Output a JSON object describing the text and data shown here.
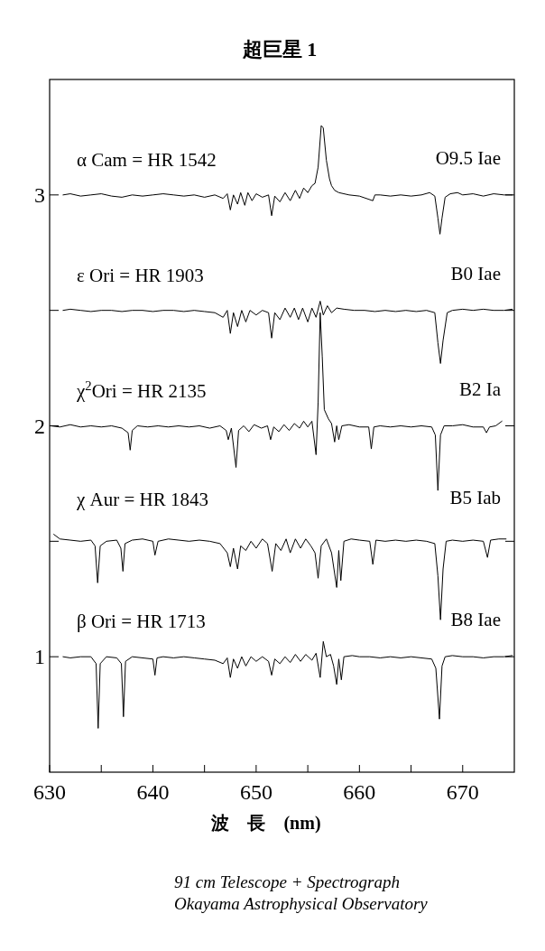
{
  "chart_data": {
    "type": "line",
    "title": "超巨星 1",
    "xlabel": "波　長　(nm)",
    "xlim": [
      630,
      675
    ],
    "ylim": [
      0.5,
      3.5
    ],
    "xticks": [
      630,
      {
        "value": 635,
        "label": null
      },
      640,
      {
        "value": 645,
        "label": null
      },
      650,
      {
        "value": 655,
        "label": null
      },
      660,
      {
        "value": 665,
        "label": null
      },
      670
    ],
    "yticks": [
      1,
      {
        "value": 1.5,
        "label": null
      },
      2,
      {
        "value": 2.5,
        "label": null
      },
      3
    ],
    "grid": false,
    "marker": "none",
    "line_style": "solid",
    "annotations": [
      "O9.5 Iae",
      "B0 Iae",
      "B2 Ia",
      "B5 Iab",
      "B8 Iae",
      "91 cm Telescope + Spectrograph",
      "Okayama Astrophysical Observatory"
    ],
    "series": [
      {
        "name": "α  Cam = HR 1542",
        "color": "#000000",
        "x": [
          631.3,
          632,
          633,
          634,
          635,
          636,
          637,
          638,
          639,
          640,
          641,
          642,
          643,
          644,
          645,
          646,
          646.8,
          647.2,
          647.5,
          647.8,
          648.2,
          648.5,
          648.9,
          649.2,
          649.6,
          650,
          650.6,
          651.2,
          651.5,
          651.8,
          652.3,
          652.8,
          653.3,
          653.8,
          654.2,
          654.6,
          655,
          655.4,
          655.7,
          656,
          656.3,
          656.5,
          656.8,
          657.1,
          657.3,
          657.6,
          658,
          659,
          660,
          661.3,
          661.5,
          662,
          663,
          664,
          665,
          666,
          666.8,
          667.3,
          667.6,
          667.8,
          668,
          668.3,
          668.8,
          669.5,
          670,
          671,
          672,
          673,
          674,
          674.8
        ],
        "values": [
          3.0,
          3.005,
          2.995,
          3.0,
          3.005,
          2.995,
          2.99,
          3.0,
          2.995,
          3.0,
          3.005,
          3.0,
          2.995,
          3.0,
          2.99,
          3.0,
          2.985,
          3.005,
          2.935,
          3.0,
          2.96,
          3.01,
          2.955,
          3.01,
          2.975,
          3.005,
          2.99,
          3.0,
          2.91,
          2.995,
          2.97,
          3.01,
          2.975,
          3.02,
          2.985,
          3.03,
          3.01,
          3.04,
          3.05,
          3.12,
          3.3,
          3.29,
          3.15,
          3.07,
          3.04,
          3.02,
          3.01,
          3.0,
          2.995,
          2.975,
          3.0,
          3.0,
          2.995,
          3.0,
          2.995,
          3.0,
          3.01,
          2.995,
          2.9,
          2.83,
          2.9,
          2.99,
          3.005,
          3.01,
          3.0,
          3.005,
          2.995,
          3.005,
          3.0,
          3.0
        ]
      },
      {
        "name": "ε  Ori = HR 1903",
        "color": "#000000",
        "x": [
          631.3,
          632,
          633,
          634,
          635,
          636,
          637,
          638,
          639,
          640,
          641,
          642,
          643,
          644,
          645,
          646,
          646.8,
          647.2,
          647.5,
          647.8,
          648.2,
          648.6,
          649,
          649.4,
          650,
          650.6,
          651.2,
          651.5,
          651.8,
          652.3,
          652.8,
          653.3,
          653.7,
          654.1,
          654.5,
          655,
          655.4,
          655.8,
          656.2,
          656.5,
          656.9,
          657.3,
          657.8,
          658.5,
          659.5,
          660.5,
          661.5,
          662.5,
          663.5,
          664.5,
          665.5,
          666.5,
          667.3,
          667.6,
          667.85,
          668.1,
          668.5,
          669,
          670,
          671,
          672,
          673,
          674,
          674.8
        ],
        "values": [
          2.5,
          2.505,
          2.5,
          2.495,
          2.5,
          2.5,
          2.495,
          2.5,
          2.5,
          2.495,
          2.5,
          2.5,
          2.495,
          2.5,
          2.495,
          2.49,
          2.47,
          2.5,
          2.4,
          2.49,
          2.43,
          2.5,
          2.45,
          2.5,
          2.48,
          2.5,
          2.49,
          2.38,
          2.49,
          2.46,
          2.51,
          2.47,
          2.51,
          2.46,
          2.51,
          2.45,
          2.51,
          2.47,
          2.54,
          2.48,
          2.52,
          2.49,
          2.51,
          2.505,
          2.5,
          2.5,
          2.495,
          2.5,
          2.495,
          2.5,
          2.495,
          2.5,
          2.49,
          2.36,
          2.27,
          2.37,
          2.49,
          2.5,
          2.505,
          2.5,
          2.505,
          2.5,
          2.5,
          2.505
        ]
      },
      {
        "name": "χ$^{2}$Ori = HR 2135",
        "color": "#000000",
        "x": [
          630.1,
          631,
          632,
          633,
          634,
          635,
          636,
          637,
          637.6,
          637.8,
          638,
          638.5,
          639.5,
          640.5,
          641.5,
          642.5,
          643.5,
          644.5,
          645.5,
          646.5,
          647.1,
          647.3,
          647.6,
          648.05,
          648.3,
          648.8,
          649.3,
          649.8,
          650.5,
          651.1,
          651.4,
          651.7,
          652.2,
          652.7,
          653.2,
          653.7,
          654.2,
          654.6,
          655,
          655.4,
          655.8,
          656,
          656.2,
          656.4,
          656.6,
          657,
          657.3,
          657.6,
          657.8,
          658,
          658.3,
          659,
          660,
          660.9,
          661.15,
          661.4,
          662,
          663,
          664,
          665,
          666,
          667,
          667.35,
          667.6,
          667.85,
          668.2,
          669,
          670,
          671,
          672,
          672.3,
          672.6,
          673.2,
          673.8
        ],
        "values": [
          2.0,
          1.995,
          2.005,
          1.995,
          2.0,
          1.995,
          2.0,
          1.99,
          1.97,
          1.895,
          1.98,
          2.0,
          1.995,
          2.0,
          1.995,
          2.0,
          1.995,
          2.0,
          1.99,
          2.0,
          1.98,
          1.94,
          1.99,
          1.82,
          1.98,
          2.0,
          1.975,
          2.005,
          1.99,
          2.0,
          1.94,
          1.995,
          1.975,
          2.005,
          1.98,
          2.01,
          1.99,
          2.02,
          1.995,
          2.02,
          1.875,
          2.1,
          2.49,
          2.3,
          2.07,
          2.03,
          2.01,
          1.93,
          2.0,
          1.94,
          2.0,
          2.005,
          1.995,
          1.995,
          1.9,
          1.995,
          2.0,
          1.995,
          2.0,
          1.995,
          2.0,
          1.995,
          1.96,
          1.72,
          1.96,
          2.0,
          2.0,
          2.005,
          1.995,
          1.995,
          1.97,
          1.995,
          2.0,
          2.02
        ]
      },
      {
        "name": "χ  Aur = HR 1843",
        "color": "#000000",
        "x": [
          630.4,
          631,
          632,
          633,
          634,
          634.4,
          634.65,
          634.9,
          635.5,
          636.5,
          636.9,
          637.1,
          637.3,
          638,
          639,
          640,
          640.2,
          640.5,
          641.5,
          642.5,
          643.5,
          644.5,
          645.5,
          646.5,
          647.2,
          647.5,
          647.8,
          648.2,
          648.5,
          649,
          649.5,
          650,
          650.6,
          651.1,
          651.55,
          651.9,
          652.4,
          652.9,
          653.3,
          653.8,
          654.3,
          654.8,
          655.3,
          655.7,
          656,
          656.3,
          656.8,
          657.3,
          657.8,
          658,
          658.2,
          658.5,
          659.2,
          660,
          661,
          661.3,
          661.6,
          662.5,
          663.5,
          664.5,
          665.5,
          666.5,
          667.3,
          667.6,
          667.85,
          668.1,
          668.4,
          669,
          670,
          671,
          672,
          672.4,
          672.7,
          673.5,
          674.2
        ],
        "values": [
          1.53,
          1.51,
          1.505,
          1.5,
          1.505,
          1.48,
          1.32,
          1.48,
          1.5,
          1.505,
          1.47,
          1.37,
          1.49,
          1.505,
          1.51,
          1.5,
          1.44,
          1.5,
          1.51,
          1.505,
          1.5,
          1.505,
          1.5,
          1.49,
          1.45,
          1.39,
          1.47,
          1.38,
          1.48,
          1.46,
          1.5,
          1.47,
          1.51,
          1.49,
          1.37,
          1.49,
          1.46,
          1.51,
          1.45,
          1.51,
          1.47,
          1.51,
          1.48,
          1.45,
          1.34,
          1.48,
          1.51,
          1.45,
          1.3,
          1.46,
          1.33,
          1.5,
          1.51,
          1.505,
          1.5,
          1.4,
          1.505,
          1.5,
          1.505,
          1.5,
          1.505,
          1.5,
          1.49,
          1.35,
          1.16,
          1.38,
          1.5,
          1.505,
          1.5,
          1.505,
          1.5,
          1.43,
          1.505,
          1.51,
          1.51
        ]
      },
      {
        "name": "β  Ori = HR 1713",
        "color": "#000000",
        "x": [
          631.3,
          632,
          633,
          634,
          634.5,
          634.7,
          634.9,
          635.5,
          636.5,
          636.95,
          637.15,
          637.35,
          638,
          639,
          640,
          640.2,
          640.4,
          641,
          642,
          643,
          644,
          645,
          646,
          646.8,
          647.2,
          647.5,
          647.8,
          648.2,
          648.6,
          649,
          649.5,
          650,
          650.6,
          651.2,
          651.5,
          651.8,
          652.3,
          652.8,
          653.3,
          653.8,
          654.3,
          654.8,
          655.4,
          655.8,
          656.2,
          656.5,
          656.8,
          657.2,
          657.5,
          657.8,
          658,
          658.25,
          658.5,
          659.3,
          660,
          661,
          662,
          663,
          664,
          665,
          666,
          667,
          667.4,
          667.75,
          668,
          668.3,
          669,
          670,
          671,
          672,
          673,
          674,
          674.8
        ],
        "values": [
          1.0,
          0.995,
          1.0,
          1.0,
          0.97,
          0.69,
          0.97,
          1.0,
          0.995,
          0.97,
          0.74,
          0.98,
          1.0,
          0.995,
          0.99,
          0.92,
          0.995,
          1.0,
          0.995,
          1.0,
          0.995,
          0.99,
          0.985,
          0.97,
          0.995,
          0.91,
          0.99,
          0.95,
          1.0,
          0.96,
          1.0,
          0.98,
          1.0,
          0.98,
          0.92,
          0.99,
          0.97,
          1.0,
          0.975,
          1.01,
          0.98,
          1.01,
          0.985,
          1.015,
          0.91,
          1.066,
          1.0,
          1.01,
          0.96,
          0.88,
          0.99,
          0.9,
          1.0,
          1.005,
          1.0,
          1.0,
          0.995,
          1.0,
          0.995,
          1.0,
          0.995,
          0.99,
          0.95,
          0.73,
          0.96,
          1.0,
          1.005,
          1.0,
          1.0,
          0.995,
          1.0,
          1.0,
          1.005
        ]
      }
    ]
  }
}
